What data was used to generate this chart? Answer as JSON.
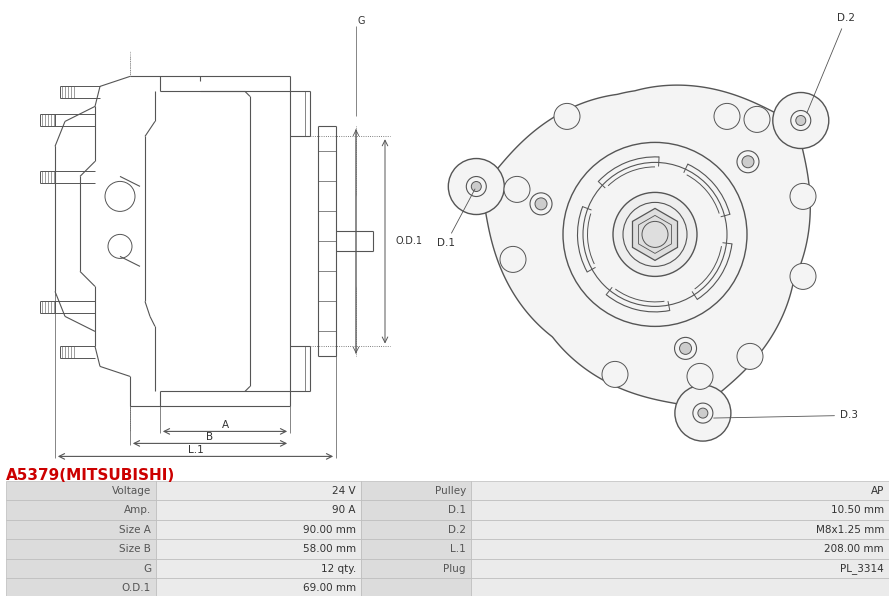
{
  "title": "A5379(MITSUBISHI)",
  "title_color": "#cc0000",
  "bg_color": "#ffffff",
  "table": {
    "left_labels": [
      "Voltage",
      "Amp.",
      "Size A",
      "Size B",
      "G",
      "O.D.1"
    ],
    "left_values": [
      "24 V",
      "90 A",
      "90.00 mm",
      "58.00 mm",
      "12 qty.",
      "69.00 mm"
    ],
    "right_labels": [
      "Pulley",
      "D.1",
      "D.2",
      "L.1",
      "Plug",
      ""
    ],
    "right_values": [
      "AP",
      "10.50 mm",
      "M8x1.25 mm",
      "208.00 mm",
      "PL_3314",
      ""
    ]
  },
  "line_color": "#555555",
  "dim_color": "#555555",
  "label_color": "#555555",
  "value_color": "#333333",
  "row_bg_label": "#dcdcdc",
  "row_bg_value": "#ebebeb",
  "row_border": "#bbbbbb"
}
